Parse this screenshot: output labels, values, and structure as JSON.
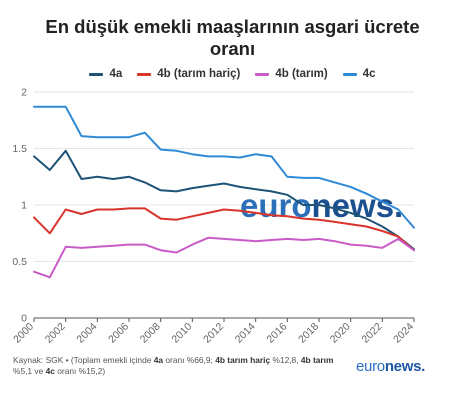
{
  "title_lines": [
    "En düşük emekli maaşlarının asgari ücrete",
    "oranı"
  ],
  "colors": {
    "4a": "#1d5477",
    "4b_tarim_haric": "#d9342b",
    "4b_tarim": "#c95bc7",
    "4c": "#2f8ad6"
  },
  "watermark": {
    "prefix": "euro",
    "suffix": "news."
  },
  "source": {
    "prefix": "Kaynak: SGK • (Toplam emekli içinde ",
    "k1": "4a",
    "t1": " oranı %66,9; ",
    "k2": "4b tarım hariç",
    "t2": " %12,8, ",
    "k3": "4b tarım",
    "t3": " %5,1 ve ",
    "k4": "4c",
    "t4": " oranı %15,2)"
  },
  "brand": {
    "prefix": "euro",
    "suffix": "news."
  },
  "chart_data": {
    "type": "line",
    "x": [
      2000,
      2001,
      2002,
      2003,
      2004,
      2005,
      2006,
      2007,
      2008,
      2009,
      2010,
      2011,
      2012,
      2013,
      2014,
      2015,
      2016,
      2017,
      2018,
      2019,
      2020,
      2021,
      2022,
      2023,
      2024
    ],
    "xticks": [
      "2000",
      "2002",
      "2004",
      "2006",
      "2008",
      "2010",
      "2012",
      "2014",
      "2016",
      "2018",
      "2020",
      "2022",
      "2024"
    ],
    "yticks": [
      "0",
      "0.5",
      "1",
      "1.5",
      "2"
    ],
    "ylim": [
      0,
      2
    ],
    "xlim": [
      2000,
      2024
    ],
    "grid": true,
    "legend": "top-center",
    "series": [
      {
        "key": "4a",
        "name": "4a",
        "values": [
          1.43,
          1.31,
          1.48,
          1.23,
          1.25,
          1.23,
          1.25,
          1.2,
          1.13,
          1.12,
          1.15,
          1.17,
          1.19,
          1.16,
          1.14,
          1.12,
          1.09,
          1.0,
          1.0,
          0.97,
          0.93,
          0.88,
          0.81,
          0.72,
          0.61
        ]
      },
      {
        "key": "4b_tarim_haric",
        "name": "4b (tarım hariç)",
        "values": [
          0.89,
          0.75,
          0.96,
          0.92,
          0.96,
          0.96,
          0.97,
          0.97,
          0.88,
          0.87,
          0.9,
          0.93,
          0.96,
          0.95,
          0.93,
          0.91,
          0.9,
          0.88,
          0.87,
          0.85,
          0.83,
          0.81,
          0.77,
          0.72,
          0.6
        ]
      },
      {
        "key": "4b_tarim",
        "name": "4b (tarım)",
        "values": [
          0.41,
          0.36,
          0.63,
          0.62,
          0.63,
          0.64,
          0.65,
          0.65,
          0.6,
          0.58,
          0.65,
          0.71,
          0.7,
          0.69,
          0.68,
          0.69,
          0.7,
          0.69,
          0.7,
          0.68,
          0.65,
          0.64,
          0.62,
          0.7,
          0.6
        ]
      },
      {
        "key": "4c",
        "name": "4c",
        "values": [
          1.87,
          1.87,
          1.87,
          1.61,
          1.6,
          1.6,
          1.6,
          1.64,
          1.49,
          1.48,
          1.45,
          1.43,
          1.43,
          1.42,
          1.45,
          1.43,
          1.25,
          1.24,
          1.24,
          1.2,
          1.16,
          1.1,
          1.03,
          0.96,
          0.8
        ]
      }
    ]
  }
}
